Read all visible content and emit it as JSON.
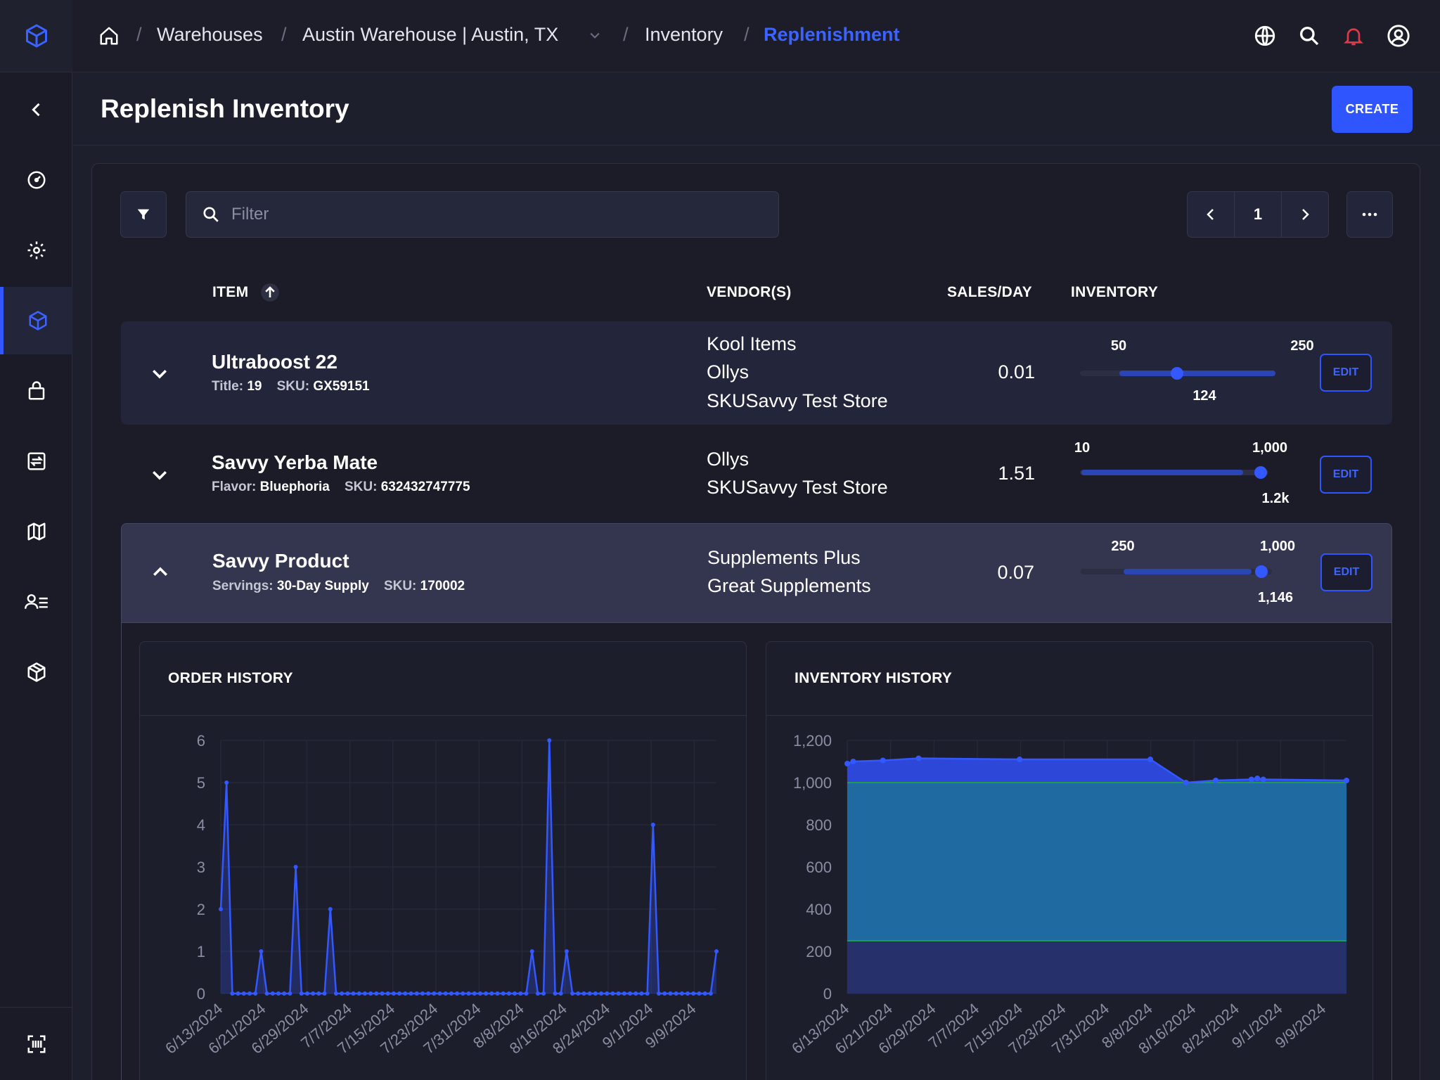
{
  "colors": {
    "accent": "#3358ff",
    "bg": "#1e1f2c",
    "alert": "#e0394a"
  },
  "breadcrumb": [
    {
      "label": "Warehouses"
    },
    {
      "label": "Austin Warehouse | Austin, TX"
    },
    {
      "label": "Inventory"
    },
    {
      "label": "Replenishment"
    }
  ],
  "header": {
    "title": "Replenish Inventory",
    "create_label": "CREATE"
  },
  "sidebar": {
    "icons": [
      "cube-logo-icon",
      "collapse-chevron-icon",
      "dashboard-gauge-icon",
      "settings-gear-icon",
      "inventory-cube-icon",
      "shopping-bag-icon",
      "transfer-icon",
      "map-icon",
      "contacts-list-icon",
      "package-icon",
      "barcode-scan-icon"
    ]
  },
  "toolbar": {
    "filter_placeholder": "Filter",
    "page": "1"
  },
  "table": {
    "headers": {
      "item": "ITEM",
      "vendors": "VENDOR(S)",
      "sales": "SALES/DAY",
      "inventory": "INVENTORY"
    },
    "edit_label": "EDIT",
    "rows": [
      {
        "name": "Ultraboost 22",
        "meta1_label": "Title:",
        "meta1_value": "19",
        "sku_label": "SKU:",
        "sku_value": "GX59151",
        "vendors": [
          "Kool Items",
          "Ollys",
          "SKUSavvy Test Store"
        ],
        "sales_per_day": "0.01",
        "slider": {
          "min_label": "50",
          "max_label": "250",
          "value_label": "124",
          "min": 50,
          "max": 250,
          "value": 124
        }
      },
      {
        "name": "Savvy Yerba Mate",
        "meta1_label": "Flavor:",
        "meta1_value": "Bluephoria",
        "sku_label": "SKU:",
        "sku_value": "632432747775",
        "vendors": [
          "Ollys",
          "SKUSavvy Test Store"
        ],
        "sales_per_day": "1.51",
        "slider": {
          "min_label": "10",
          "max_label": "1,000",
          "value_label": "1.2k",
          "min": 10,
          "max": 1000,
          "value": 1200
        }
      },
      {
        "name": "Savvy Product",
        "meta1_label": "Servings:",
        "meta1_value": "30-Day Supply",
        "sku_label": "SKU:",
        "sku_value": "170002",
        "vendors": [
          "Supplements Plus",
          "Great Supplements"
        ],
        "sales_per_day": "0.07",
        "slider": {
          "min_label": "250",
          "max_label": "1,000",
          "value_label": "1,146",
          "min": 250,
          "max": 1000,
          "value": 1146
        }
      }
    ]
  },
  "chart_data": [
    {
      "type": "line",
      "title": "ORDER HISTORY",
      "ylim": [
        0,
        6
      ],
      "yticks": [
        "0",
        "1",
        "2",
        "3",
        "4",
        "5",
        "6"
      ],
      "xticks": [
        "6/13/2024",
        "6/21/2024",
        "6/29/2024",
        "7/7/2024",
        "7/15/2024",
        "7/23/2024",
        "7/31/2024",
        "8/8/2024",
        "8/16/2024",
        "8/24/2024",
        "9/1/2024",
        "9/9/2024"
      ],
      "series": [
        {
          "values": [
            2,
            5,
            0,
            0,
            0,
            0,
            0,
            1,
            0,
            0,
            0,
            0,
            0,
            3,
            0,
            0,
            0,
            0,
            0,
            2,
            0,
            0,
            0,
            0,
            0,
            0,
            0,
            0,
            0,
            0,
            0,
            0,
            0,
            0,
            0,
            0,
            0,
            0,
            0,
            0,
            0,
            0,
            0,
            0,
            0,
            0,
            0,
            0,
            0,
            0,
            0,
            0,
            0,
            0,
            1,
            0,
            0,
            6,
            0,
            0,
            1,
            0,
            0,
            0,
            0,
            0,
            0,
            0,
            0,
            0,
            0,
            0,
            0,
            0,
            0,
            4,
            0,
            0,
            0,
            0,
            0,
            0,
            0,
            0,
            0,
            0,
            1
          ]
        }
      ]
    },
    {
      "type": "area",
      "title": "INVENTORY HISTORY",
      "ylim": [
        0,
        1200
      ],
      "yticks": [
        "0",
        "200",
        "400",
        "600",
        "800",
        "1,000",
        "1,200"
      ],
      "xticks": [
        "6/13/2024",
        "6/21/2024",
        "6/29/2024",
        "7/7/2024",
        "7/15/2024",
        "7/23/2024",
        "7/31/2024",
        "8/8/2024",
        "8/16/2024",
        "8/24/2024",
        "9/1/2024",
        "9/9/2024"
      ],
      "bands": {
        "min": 250,
        "max": 1000
      },
      "series": [
        {
          "x": [
            0,
            1,
            6,
            12,
            29,
            51,
            57,
            62,
            68,
            69,
            70,
            84
          ],
          "values": [
            1090,
            1100,
            1105,
            1115,
            1110,
            1110,
            1000,
            1010,
            1015,
            1020,
            1015,
            1010
          ]
        }
      ]
    }
  ]
}
